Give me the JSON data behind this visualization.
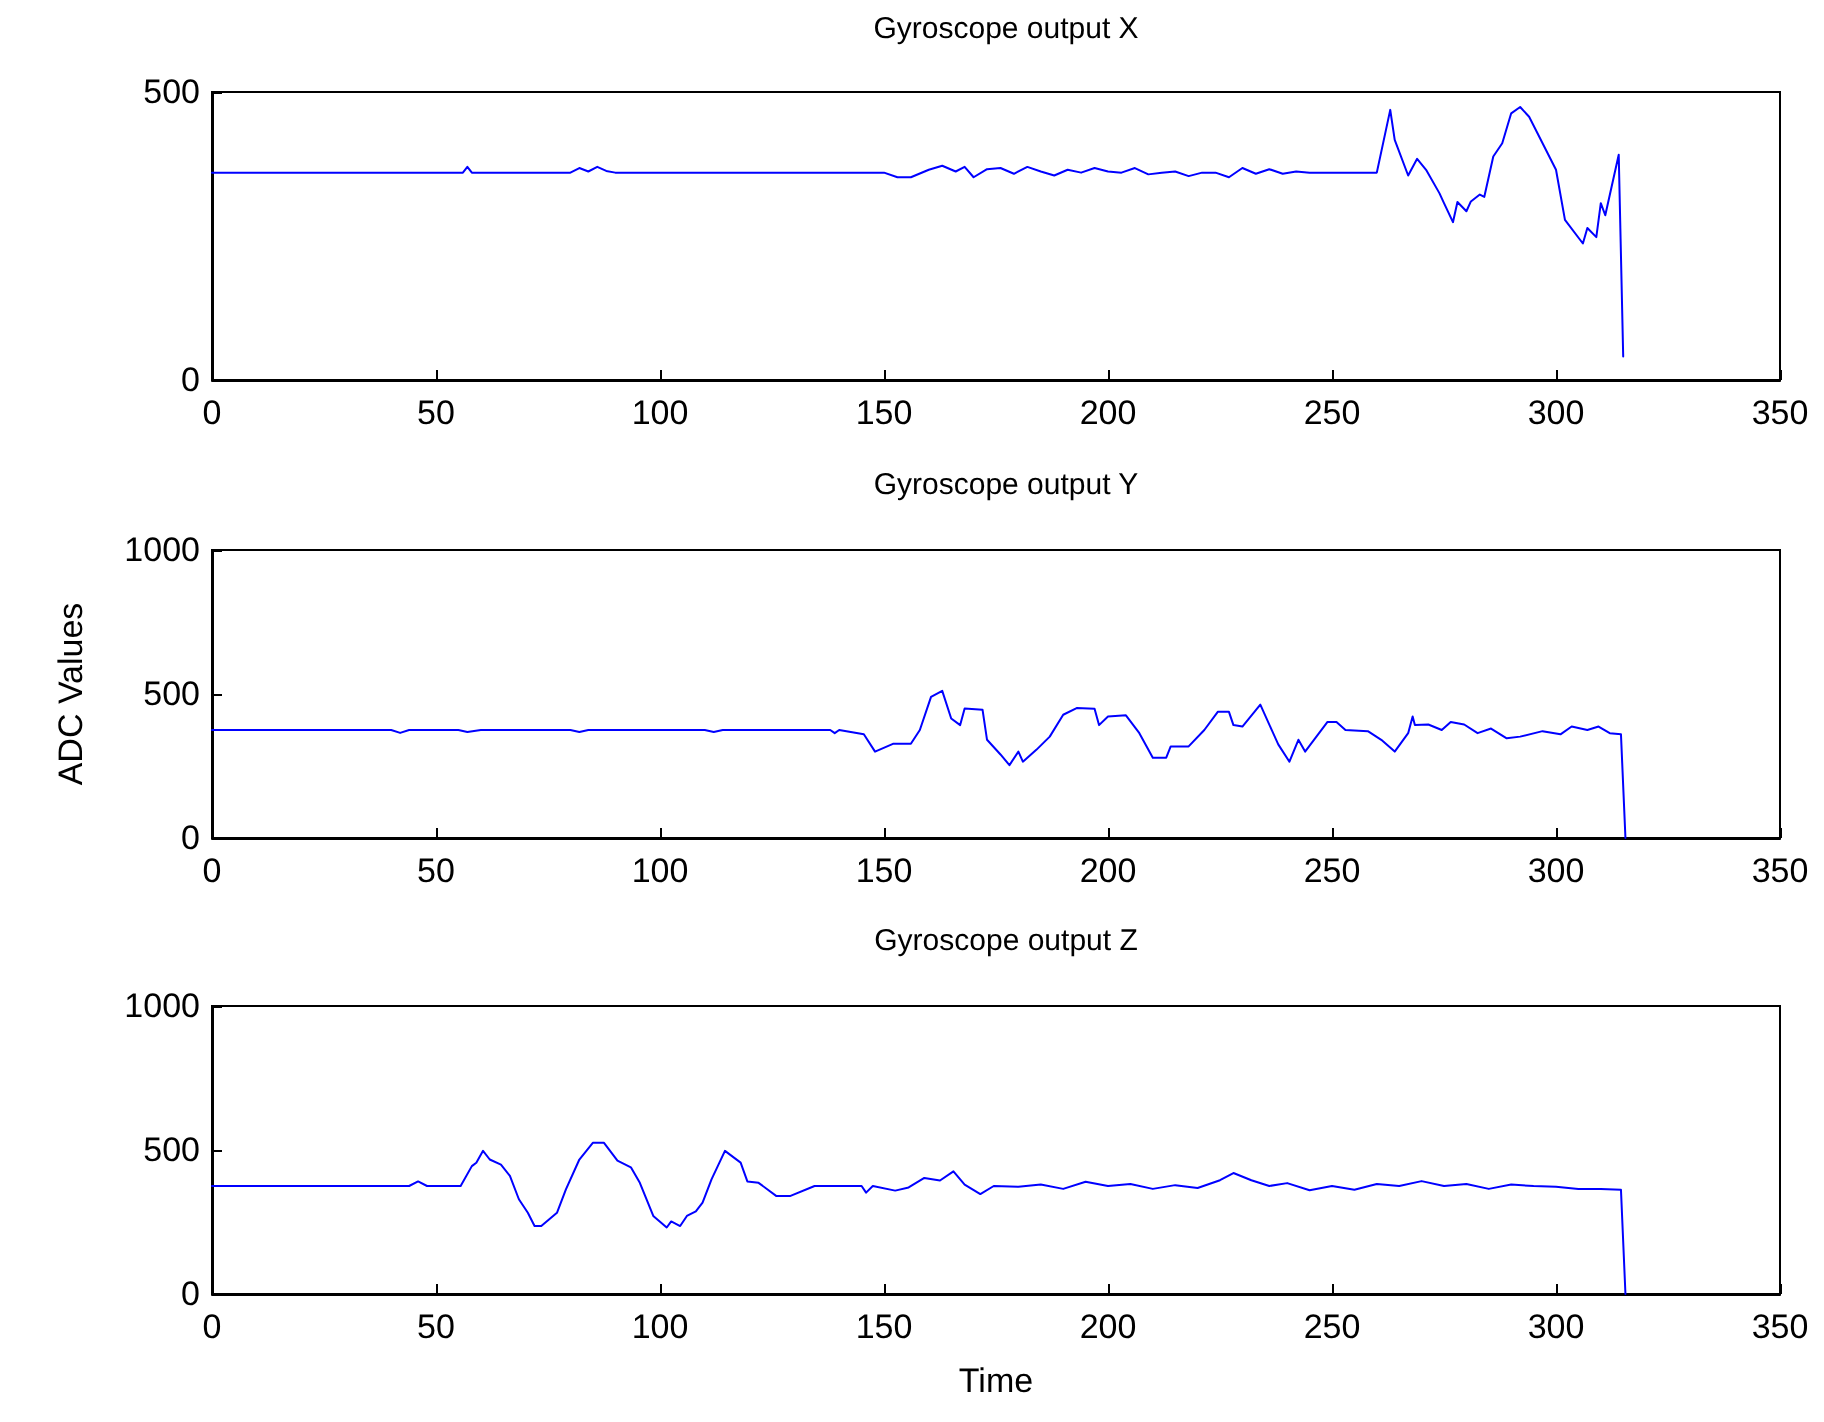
{
  "chart_data": [
    {
      "type": "line",
      "title": "Gyroscope output X",
      "color": "#0000ff",
      "xlim": [
        0,
        350
      ],
      "xticks": [
        0,
        50,
        100,
        150,
        200,
        250,
        300,
        350
      ],
      "ylim": [
        0,
        500
      ],
      "yticks": [
        0,
        500
      ],
      "grid": false,
      "marker": "none",
      "line_style": "solid",
      "x": [
        0,
        56,
        57,
        58,
        80,
        82,
        84,
        86,
        88,
        90,
        150,
        153,
        156,
        160,
        163,
        166,
        168,
        170,
        173,
        176,
        179,
        182,
        185,
        188,
        191,
        194,
        197,
        200,
        203,
        206,
        209,
        212,
        215,
        218,
        221,
        224,
        227,
        230,
        233,
        236,
        239,
        242,
        245,
        260,
        263,
        264,
        267,
        269,
        271,
        274,
        275,
        277,
        278,
        280,
        281,
        283,
        284,
        286,
        288,
        290,
        292,
        294,
        297,
        300,
        302,
        306,
        307,
        309,
        310,
        311,
        314,
        315
      ],
      "values": [
        360,
        360,
        370,
        360,
        360,
        368,
        362,
        370,
        363,
        360,
        360,
        352,
        352,
        365,
        372,
        362,
        370,
        352,
        366,
        368,
        358,
        370,
        362,
        355,
        365,
        360,
        368,
        362,
        360,
        368,
        357,
        360,
        362,
        354,
        360,
        360,
        352,
        368,
        358,
        366,
        358,
        362,
        360,
        360,
        469,
        417,
        355,
        384,
        365,
        324,
        307,
        274,
        309,
        293,
        310,
        322,
        318,
        388,
        411,
        463,
        474,
        457,
        411,
        365,
        278,
        237,
        264,
        248,
        307,
        286,
        391,
        41
      ]
    },
    {
      "type": "line",
      "title": "Gyroscope output Y",
      "ylabel": "ADC Values",
      "color": "#0000ff",
      "xlim": [
        0,
        350
      ],
      "xticks": [
        0,
        50,
        100,
        150,
        200,
        250,
        300,
        350
      ],
      "ylim": [
        0,
        1000
      ],
      "yticks": [
        0,
        500,
        1000
      ],
      "grid": false,
      "marker": "none",
      "line_style": "solid",
      "x": [
        0,
        40,
        42,
        44,
        55,
        57,
        60,
        80,
        82,
        84,
        110,
        112,
        114,
        138,
        139,
        140,
        145.5,
        148,
        152,
        156,
        158,
        160.5,
        163,
        165,
        167,
        168,
        172,
        173,
        176,
        178,
        180,
        181,
        184,
        187,
        190,
        193,
        197,
        198,
        200,
        204,
        207,
        210,
        213,
        214,
        218,
        221.5,
        224.5,
        227,
        228,
        230,
        234,
        238,
        240.5,
        242.5,
        244,
        249,
        251,
        253,
        258,
        261,
        264,
        267,
        268,
        268.5,
        271.5,
        274.5,
        276.5,
        279.5,
        282.5,
        285.5,
        289,
        292,
        297,
        301,
        303.5,
        307,
        309.5,
        312,
        314.5,
        315.5
      ],
      "values": [
        375,
        375,
        365,
        375,
        375,
        368,
        375,
        375,
        368,
        375,
        375,
        368,
        375,
        375,
        364,
        375,
        360,
        300,
        327,
        327,
        375,
        490,
        511,
        415,
        392,
        450,
        445,
        341,
        290,
        253,
        300,
        265,
        306,
        352,
        428,
        451,
        449,
        392,
        422,
        426,
        364,
        279,
        279,
        318,
        318,
        375,
        438,
        438,
        392,
        387,
        463,
        325,
        265,
        341,
        300,
        403,
        403,
        375,
        371,
        341,
        300,
        364,
        422,
        392,
        394,
        375,
        403,
        394,
        364,
        380,
        346,
        352,
        371,
        360,
        387,
        375,
        387,
        364,
        360,
        0
      ]
    },
    {
      "type": "line",
      "title": "Gyroscope output Z",
      "xlabel": "Time",
      "color": "#0000ff",
      "xlim": [
        0,
        350
      ],
      "xticks": [
        0,
        50,
        100,
        150,
        200,
        250,
        300,
        350
      ],
      "ylim": [
        0,
        1000
      ],
      "yticks": [
        0,
        500,
        1000
      ],
      "grid": false,
      "marker": "none",
      "line_style": "solid",
      "x": [
        0,
        44,
        46,
        48,
        55.5,
        58,
        59,
        60.5,
        62,
        64.5,
        66.5,
        68.5,
        70.5,
        72,
        73.5,
        77,
        79,
        82,
        85,
        87.5,
        90.5,
        93.5,
        95.5,
        98.5,
        101.5,
        102.5,
        104.5,
        106,
        108,
        109.5,
        111.5,
        114.5,
        118,
        119.5,
        122,
        126,
        129,
        134.5,
        145,
        146,
        147.5,
        152.5,
        155.5,
        159,
        162.5,
        165.5,
        168,
        171.5,
        174.5,
        180,
        185,
        190,
        195,
        200,
        205,
        210,
        215,
        220,
        225,
        228,
        232,
        236,
        240,
        245,
        250,
        255,
        260,
        265,
        270,
        275,
        280,
        285,
        290,
        295,
        300,
        305,
        310,
        314.5,
        315.5
      ],
      "values": [
        375,
        375,
        391,
        375,
        375,
        444,
        456,
        497,
        467,
        449,
        410,
        329,
        282,
        236,
        236,
        282,
        363,
        467,
        525,
        525,
        463,
        440,
        386,
        271,
        231,
        252,
        236,
        271,
        287,
        317,
        398,
        497,
        456,
        391,
        386,
        340,
        340,
        375,
        375,
        352,
        375,
        359,
        370,
        403,
        394,
        426,
        380,
        347,
        375,
        372,
        380,
        365,
        390,
        375,
        382,
        365,
        378,
        368,
        395,
        420,
        395,
        375,
        385,
        360,
        375,
        362,
        382,
        375,
        392,
        375,
        382,
        365,
        380,
        375,
        372,
        365,
        365,
        362,
        0
      ]
    }
  ]
}
